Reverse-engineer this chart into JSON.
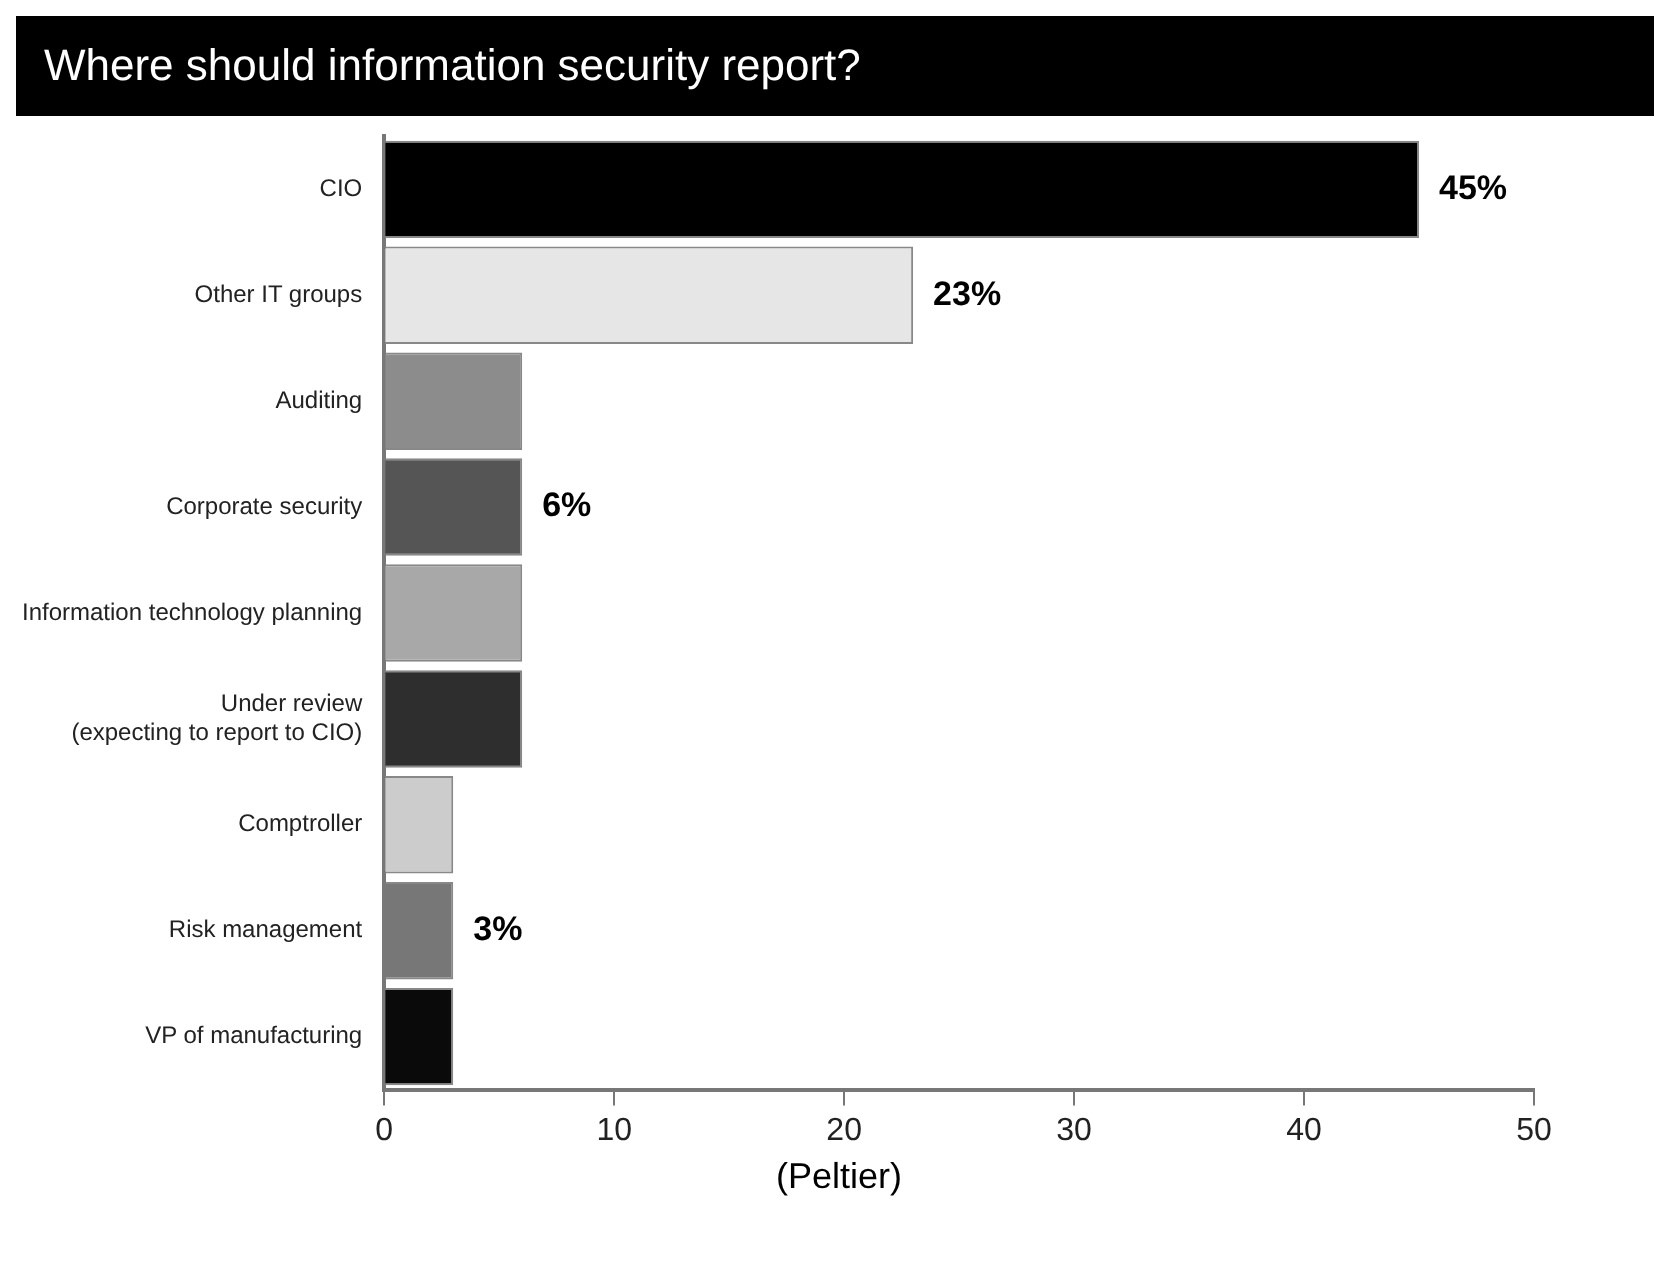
{
  "chart_data": {
    "type": "bar",
    "orientation": "horizontal",
    "title": "Where should information security report?",
    "categories": [
      "CIO",
      "Other IT groups",
      "Auditing",
      "Corporate security",
      "Information technology planning",
      "Under review\n(expecting to report to CIO)",
      "Comptroller",
      "Risk management",
      "VP of manufacturing"
    ],
    "values": [
      45,
      23,
      6,
      6,
      6,
      6,
      3,
      3,
      3
    ],
    "colors": [
      "#000000",
      "#e6e6e6",
      "#8c8c8c",
      "#555555",
      "#a8a8a8",
      "#2e2e2e",
      "#cccccc",
      "#777777",
      "#0a0a0a"
    ],
    "value_labels": [
      "45%",
      "23%",
      null,
      "6%",
      null,
      null,
      null,
      "3%",
      null
    ],
    "xlim": [
      0,
      50
    ],
    "xticks": [
      0,
      10,
      20,
      30,
      40,
      50
    ],
    "grid": false,
    "legend": false,
    "annotations": [
      "(Peltier)"
    ]
  }
}
